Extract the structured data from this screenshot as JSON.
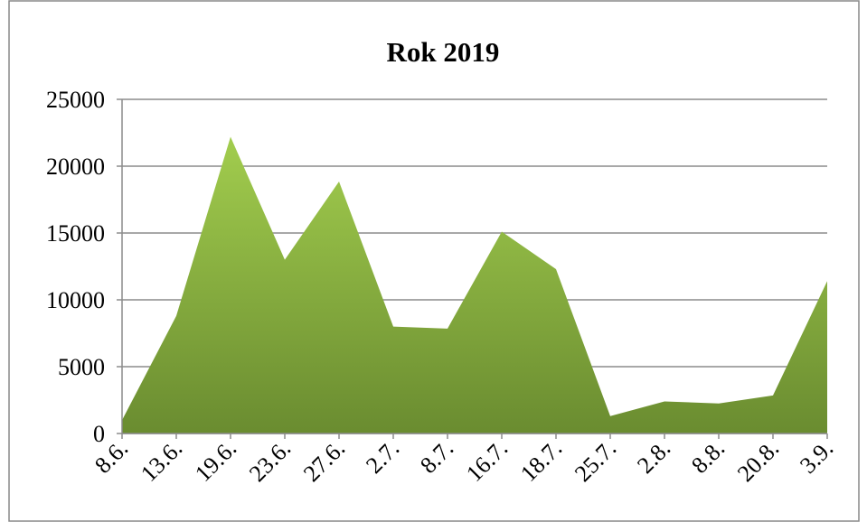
{
  "chart_data": {
    "type": "area",
    "title": "Rok 2019",
    "categories": [
      "8.6.",
      "13.6.",
      "19.6.",
      "23.6.",
      "27.6.",
      "2.7.",
      "8.7.",
      "16.7.",
      "18.7.",
      "25.7.",
      "2.8.",
      "8.8.",
      "20.8.",
      "3.9."
    ],
    "values": [
      1000,
      8800,
      22200,
      13000,
      18850,
      8000,
      7850,
      15100,
      12300,
      1300,
      2400,
      2250,
      2850,
      11400
    ],
    "color": "#8db63f",
    "ylim": [
      0,
      25000
    ],
    "yticks": [
      0,
      5000,
      10000,
      15000,
      20000,
      25000
    ],
    "grid": true
  }
}
